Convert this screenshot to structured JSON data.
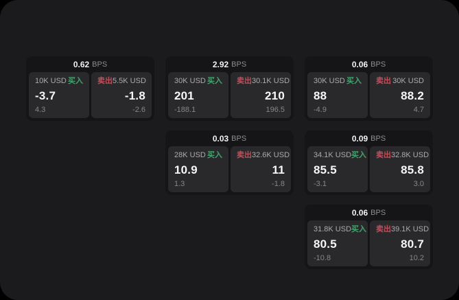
{
  "labels": {
    "bps_unit": "BPS",
    "buy": "买入",
    "sell": "卖出"
  },
  "colors": {
    "background": "#000000",
    "panel": "#1b1b1d",
    "card": "#151517",
    "tile": "#29292b",
    "buy_accent": "#43a46e",
    "sell_accent": "#c04f5c",
    "primary_text": "#f7f7f8",
    "muted_text": "#87878b"
  },
  "cards": [
    {
      "col": 1,
      "row": 1,
      "bps": "0.62",
      "buy": {
        "notional": "10K USD",
        "price": "-3.7",
        "delta": "4.3"
      },
      "sell": {
        "notional": "5.5K USD",
        "price": "-1.8",
        "delta": "-2.6"
      }
    },
    {
      "col": 2,
      "row": 1,
      "bps": "2.92",
      "buy": {
        "notional": "30K USD",
        "price": "201",
        "delta": "-188.1"
      },
      "sell": {
        "notional": "30.1K USD",
        "price": "210",
        "delta": "196.5"
      }
    },
    {
      "col": 3,
      "row": 1,
      "bps": "0.06",
      "buy": {
        "notional": "30K USD",
        "price": "88",
        "delta": "-4.9"
      },
      "sell": {
        "notional": "30K USD",
        "price": "88.2",
        "delta": "4.7"
      }
    },
    {
      "col": 2,
      "row": 2,
      "bps": "0.03",
      "buy": {
        "notional": "28K USD",
        "price": "10.9",
        "delta": "1.3"
      },
      "sell": {
        "notional": "32.6K USD",
        "price": "11",
        "delta": "-1.8"
      }
    },
    {
      "col": 3,
      "row": 2,
      "bps": "0.09",
      "buy": {
        "notional": "34.1K USD",
        "price": "85.5",
        "delta": "-3.1"
      },
      "sell": {
        "notional": "32.8K USD",
        "price": "85.8",
        "delta": "3.0"
      }
    },
    {
      "col": 3,
      "row": 3,
      "bps": "0.06",
      "buy": {
        "notional": "31.8K USD",
        "price": "80.5",
        "delta": "-10.8"
      },
      "sell": {
        "notional": "39.1K USD",
        "price": "80.7",
        "delta": "10.2"
      }
    }
  ]
}
